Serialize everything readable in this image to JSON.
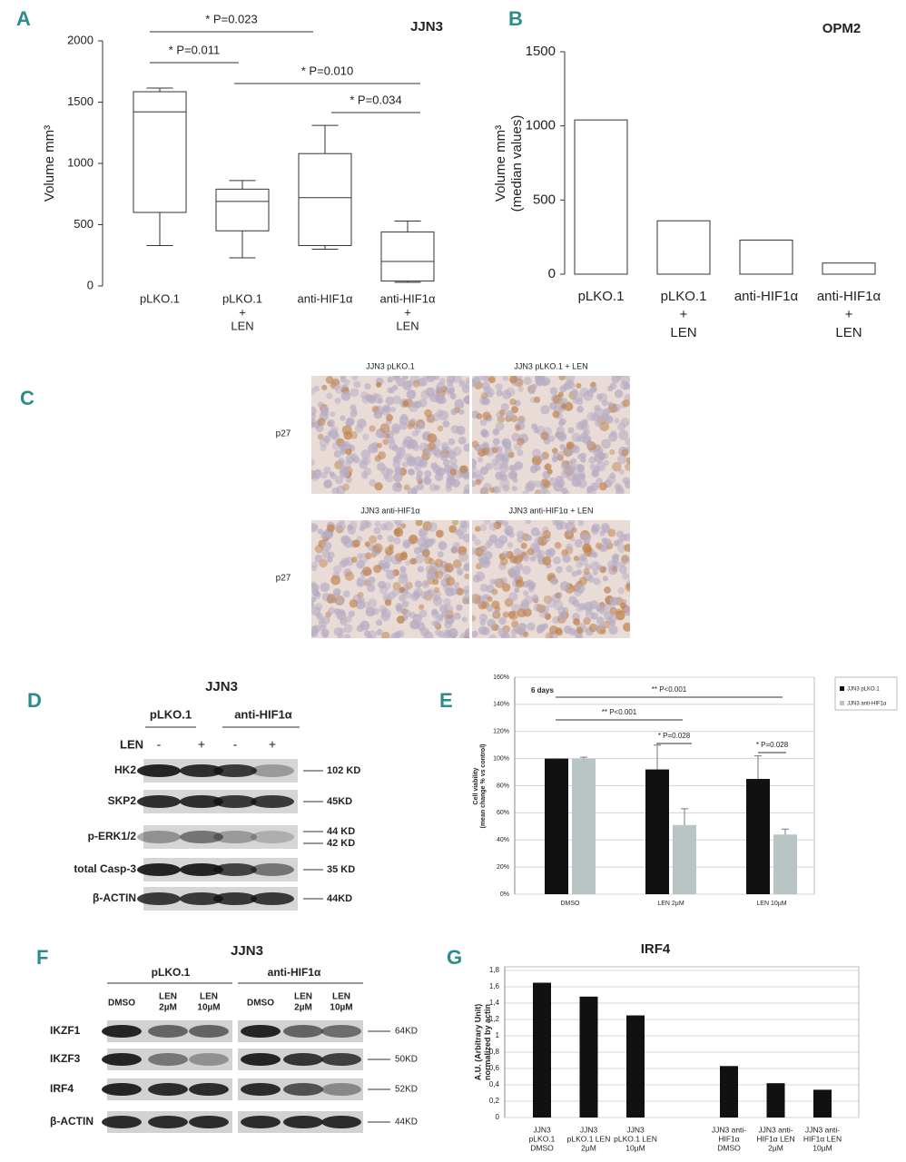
{
  "panel_labels": [
    "A",
    "B",
    "C",
    "D",
    "E",
    "F",
    "G"
  ],
  "chart_data": [
    {
      "type": "box",
      "title": "JJN3",
      "y_label": [
        "Volume mm³"
      ],
      "categories": [
        [
          "pLKO.1"
        ],
        [
          "pLKO.1",
          "+",
          "LEN"
        ],
        [
          "anti-HIF1α"
        ],
        [
          "anti-HIF1α",
          "+",
          "LEN"
        ]
      ],
      "boxes": [
        {
          "min": 330,
          "q1": 600,
          "median": 1420,
          "q3": 1585,
          "max": 1615
        },
        {
          "min": 230,
          "q1": 450,
          "median": 690,
          "q3": 790,
          "max": 860
        },
        {
          "min": 300,
          "q1": 330,
          "median": 720,
          "q3": 1080,
          "max": 1310
        },
        {
          "min": 30,
          "q1": 40,
          "median": 200,
          "q3": 440,
          "max": 530
        }
      ],
      "ylim": [
        0,
        2000
      ],
      "yticks": [
        0,
        500,
        1000,
        1500,
        2000
      ],
      "annotations": [
        "* P=0.023",
        "* P=0.011",
        "* P=0.010",
        "* P=0.034"
      ]
    },
    {
      "type": "bar",
      "title": "OPM2",
      "y_label": [
        "Volume mm³",
        "(median values)"
      ],
      "categories": [
        [
          "pLKO.1"
        ],
        [
          "pLKO.1",
          "+",
          "LEN"
        ],
        [
          "anti-HIF1α"
        ],
        [
          "anti-HIF1α",
          "+",
          "LEN"
        ]
      ],
      "values": [
        1040,
        360,
        230,
        75
      ],
      "color": "#ffffff",
      "ylim": [
        0,
        1500
      ],
      "yticks": [
        0,
        500,
        1000,
        1500
      ]
    },
    {
      "type": "bar",
      "subtitle": "6 days",
      "y_label": [
        "Cell viability",
        "(mean change % vs control)"
      ],
      "categories": [
        [
          "DMSO"
        ],
        [
          "LEN 2µM"
        ],
        [
          "LEN 10µM"
        ]
      ],
      "series": [
        {
          "name": "JJN3 pLKO.1",
          "color": "#111111",
          "values": [
            100,
            92,
            85
          ],
          "errors": [
            0,
            18,
            17
          ]
        },
        {
          "name": "JJN3 anti-HIF1α",
          "color": "#b9c5c5",
          "values": [
            100,
            51,
            44
          ],
          "errors": [
            1,
            12,
            4
          ]
        }
      ],
      "ylim": [
        0,
        160
      ],
      "yticks": [
        {
          "value": 0,
          "label": "0%"
        },
        {
          "value": 20,
          "label": "20%"
        },
        {
          "value": 40,
          "label": "40%"
        },
        {
          "value": 60,
          "label": "60%"
        },
        {
          "value": 80,
          "label": "80%"
        },
        {
          "value": 100,
          "label": "100%"
        },
        {
          "value": 120,
          "label": "120%"
        },
        {
          "value": 140,
          "label": "140%"
        },
        {
          "value": 160,
          "label": "160%"
        }
      ],
      "grid": true,
      "legend": "outside-right",
      "annotations": [
        "** P<0.001",
        "** P<0.001",
        "* P=0.028",
        "* P=0.028"
      ]
    },
    {
      "type": "bar",
      "title": "IRF4",
      "y_label": [
        "A.U. (Arbitrary Unit)",
        "normalized by actin"
      ],
      "categories": [
        [
          "JJN3",
          "pLKO.1",
          "DMSO"
        ],
        [
          "JJN3",
          "pLKO.1 LEN",
          "2µM"
        ],
        [
          "JJN3",
          "pLKO.1 LEN",
          "10µM"
        ],
        null,
        [
          "JJN3 anti-",
          "HIF1α",
          "DMSO"
        ],
        [
          "JJN3 anti-",
          "HIF1α LEN",
          "2µM"
        ],
        [
          "JJN3 anti-",
          "HIF1α LEN",
          "10µM"
        ]
      ],
      "values": [
        1.65,
        1.48,
        1.25,
        null,
        0.63,
        0.42,
        0.34
      ],
      "color": "#111111",
      "ylim": [
        0,
        1.8
      ],
      "yticks": [
        0,
        {
          "value": 0.2,
          "label": "0,2"
        },
        {
          "value": 0.4,
          "label": "0,4"
        },
        {
          "value": 0.6,
          "label": "0,6"
        },
        {
          "value": 0.8,
          "label": "0,8"
        },
        1,
        {
          "value": 1.2,
          "label": "1,2"
        },
        {
          "value": 1.4,
          "label": "1,4"
        },
        {
          "value": 1.6,
          "label": "1,6"
        },
        {
          "value": 1.8,
          "label": "1,8"
        }
      ],
      "grid": true
    }
  ],
  "panel_c": {
    "images": [
      "JJN3 pLKO.1",
      "JJN3 pLKO.1 + LEN",
      "JJN3 anti-HIF1α",
      "JJN3 anti-HIF1α + LEN"
    ],
    "stain_labels": [
      "p27",
      "p27"
    ]
  },
  "panel_d": {
    "title": "JJN3",
    "groups": [
      "pLKO.1",
      "anti-HIF1α"
    ],
    "treatment_label": "LEN",
    "lanes": [
      "-",
      "+",
      "-",
      "+"
    ],
    "rows": [
      {
        "name": "HK2",
        "sizes": [
          "102 KD"
        ]
      },
      {
        "name": "SKP2",
        "sizes": [
          "45KD"
        ]
      },
      {
        "name": "p-ERK1/2",
        "sizes": [
          "44 KD",
          "42 KD"
        ]
      },
      {
        "name": "total Casp-3",
        "sizes": [
          "35 KD"
        ]
      },
      {
        "name": "β-ACTIN",
        "sizes": [
          "44KD"
        ]
      }
    ]
  },
  "panel_f": {
    "title": "JJN3",
    "groups": [
      "pLKO.1",
      "anti-HIF1α"
    ],
    "lanes": [
      [
        "DMSO"
      ],
      [
        "LEN",
        "2µM"
      ],
      [
        "LEN",
        "10µM"
      ],
      [
        "DMSO"
      ],
      [
        "LEN",
        "2µM"
      ],
      [
        "LEN",
        "10µM"
      ]
    ],
    "rows": [
      {
        "name": "IKZF1",
        "size": "64KD"
      },
      {
        "name": "IKZF3",
        "size": "50KD"
      },
      {
        "name": "IRF4",
        "size": "52KD"
      },
      {
        "name": "β-ACTIN",
        "size": "44KD"
      }
    ]
  }
}
